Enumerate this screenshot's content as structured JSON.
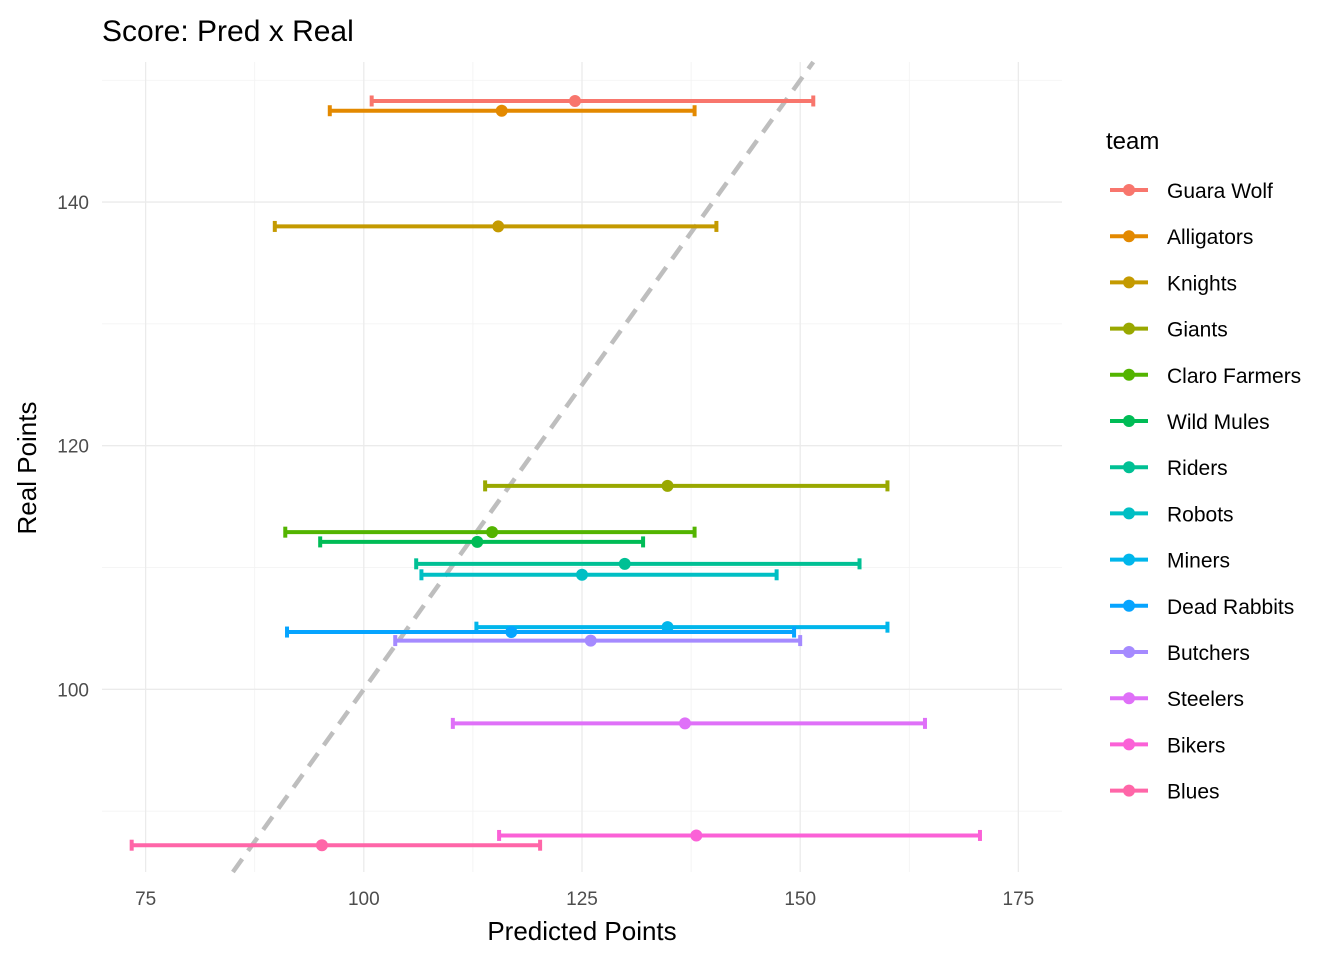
{
  "chart_data": {
    "type": "scatter",
    "title": "Score: Pred x Real",
    "xlabel": "Predicted Points",
    "ylabel": "Real Points",
    "xlim": [
      70,
      180
    ],
    "ylim": [
      85,
      151.5
    ],
    "x_ticks": [
      75,
      100,
      125,
      150,
      175
    ],
    "y_ticks": [
      100,
      120,
      140
    ],
    "x_minor": [
      87.5,
      112.5,
      137.5,
      162.5
    ],
    "y_minor": [
      90,
      110,
      130,
      150
    ],
    "grid": true,
    "legend_title": "team",
    "legend_position": "right",
    "reference_line": {
      "slope": 1,
      "intercept": 0,
      "style": "dashed",
      "color": "#bebebe"
    },
    "series": [
      {
        "name": "Guara Wolf",
        "color": "#F8766D",
        "x": 124.2,
        "y": 148.3,
        "xmin": 100.9,
        "xmax": 151.5
      },
      {
        "name": "Alligators",
        "color": "#E38900",
        "x": 115.8,
        "y": 147.5,
        "xmin": 96.1,
        "xmax": 137.9
      },
      {
        "name": "Knights",
        "color": "#C49A00",
        "x": 115.4,
        "y": 138.0,
        "xmin": 89.8,
        "xmax": 140.4
      },
      {
        "name": "Giants",
        "color": "#99A800",
        "x": 134.8,
        "y": 116.7,
        "xmin": 113.9,
        "xmax": 160.0
      },
      {
        "name": "Claro Farmers",
        "color": "#53B400",
        "x": 114.7,
        "y": 112.9,
        "xmin": 91.0,
        "xmax": 137.9
      },
      {
        "name": "Wild Mules",
        "color": "#00BC56",
        "x": 113.0,
        "y": 112.1,
        "xmin": 95.0,
        "xmax": 132.0
      },
      {
        "name": "Riders",
        "color": "#00C094",
        "x": 129.9,
        "y": 110.3,
        "xmin": 106.0,
        "xmax": 156.8
      },
      {
        "name": "Robots",
        "color": "#00BFC4",
        "x": 125.0,
        "y": 109.4,
        "xmin": 106.6,
        "xmax": 147.3
      },
      {
        "name": "Miners",
        "color": "#00B6EB",
        "x": 134.8,
        "y": 105.1,
        "xmin": 112.9,
        "xmax": 160.0
      },
      {
        "name": "Dead Rabbits",
        "color": "#06A4FF",
        "x": 116.9,
        "y": 104.7,
        "xmin": 91.2,
        "xmax": 149.3
      },
      {
        "name": "Butchers",
        "color": "#A58AFF",
        "x": 126.0,
        "y": 104.0,
        "xmin": 103.6,
        "xmax": 150.0
      },
      {
        "name": "Steelers",
        "color": "#DF70F8",
        "x": 136.8,
        "y": 97.2,
        "xmin": 110.2,
        "xmax": 164.3
      },
      {
        "name": "Bikers",
        "color": "#FB61D7",
        "x": 138.1,
        "y": 88.0,
        "xmin": 115.5,
        "xmax": 170.6
      },
      {
        "name": "Blues",
        "color": "#FF66A8",
        "x": 95.2,
        "y": 87.2,
        "xmin": 73.4,
        "xmax": 120.2
      }
    ]
  }
}
